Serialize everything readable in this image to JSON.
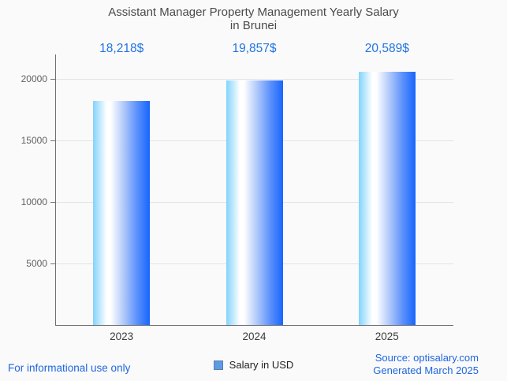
{
  "title": {
    "line1": "Assistant Manager Property Management Yearly Salary",
    "line2": "in Brunei"
  },
  "chart_data": {
    "type": "bar",
    "title": "Assistant Manager Property Management Yearly Salary in Brunei",
    "categories": [
      "2023",
      "2024",
      "2025"
    ],
    "values": [
      18218,
      19857,
      20589
    ],
    "value_labels": [
      "18,218$",
      "19,857$",
      "20,589$"
    ],
    "series": [
      {
        "name": "Salary in USD",
        "values": [
          18218,
          19857,
          20589
        ]
      }
    ],
    "xlabel": "",
    "ylabel": "",
    "ylim": [
      0,
      22000
    ],
    "yticks": [
      5000,
      10000,
      15000,
      20000
    ],
    "grid": true,
    "legend_position": "bottom"
  },
  "legend": {
    "label": "Salary in USD",
    "marker_color": "#5b9ce4"
  },
  "footer": {
    "left": "For informational use only",
    "source": "Source: optisalary.com",
    "generated": "Generated March 2025"
  },
  "colors": {
    "background": "#fafafa",
    "title_text": "#4a4a4a",
    "value_label": "#2273e3",
    "footer_link": "#2066e0",
    "axis": "#6e6e6e",
    "gridline": "#e3e3e3",
    "tick_label": "#616161",
    "bar_gradient_left": "#82d3fc",
    "bar_gradient_white": "#ffffff",
    "bar_gradient_mid": "#a9c4fa",
    "bar_gradient_deep": "#5a90fc",
    "bar_gradient_right": "#1766fd"
  }
}
